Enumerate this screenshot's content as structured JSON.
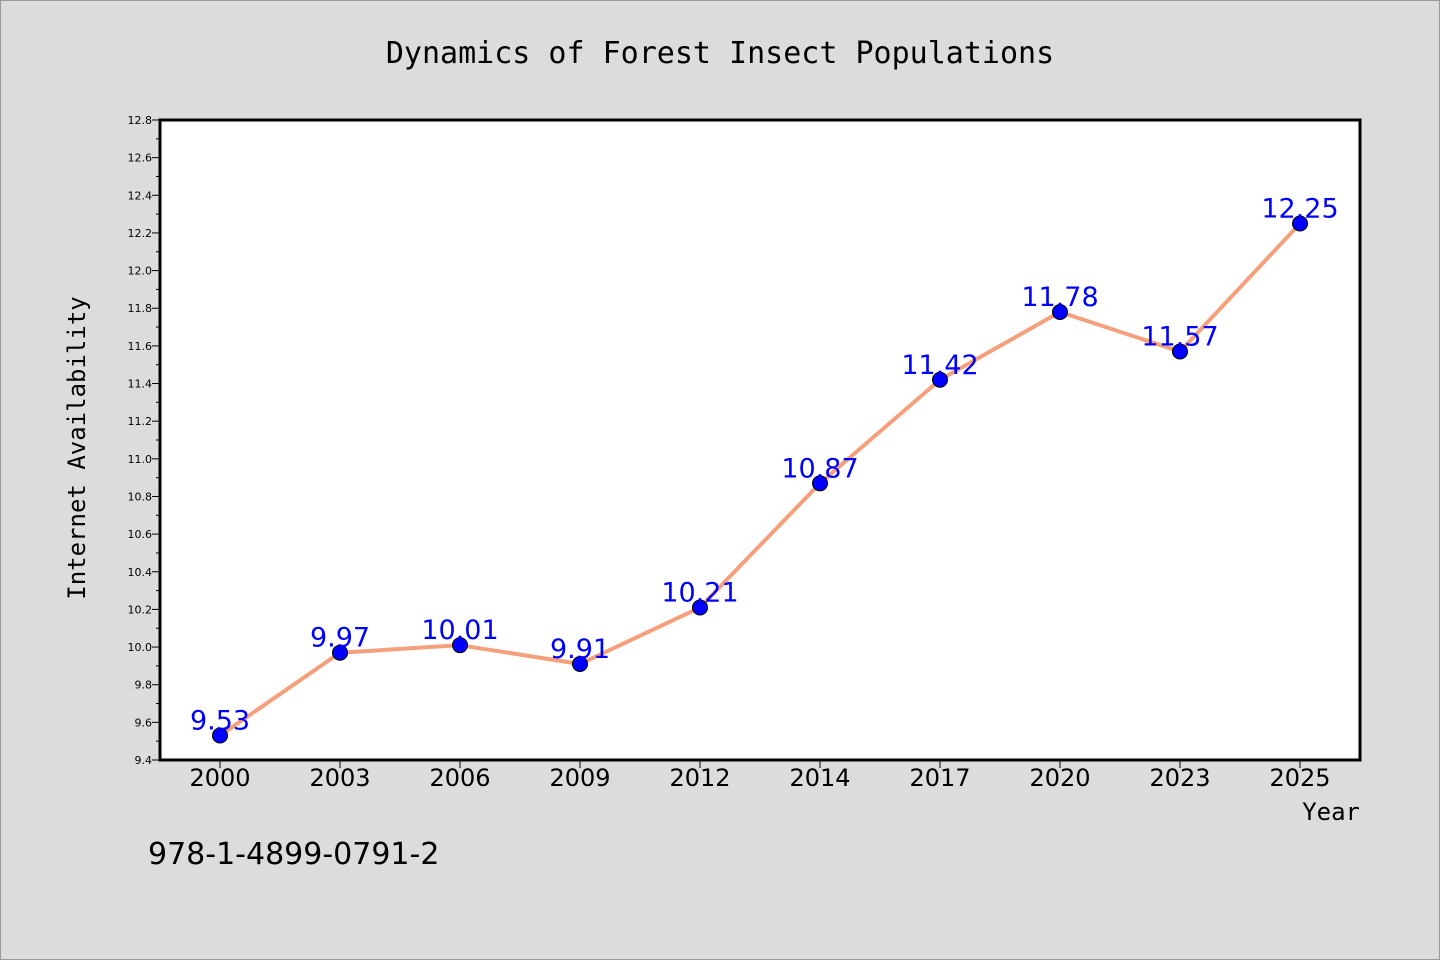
{
  "chart_data": {
    "type": "line",
    "title": "Dynamics of Forest Insect Populations",
    "xlabel": "Year",
    "ylabel": "Internet Availability",
    "categories": [
      "2000",
      "2003",
      "2006",
      "2009",
      "2012",
      "2014",
      "2017",
      "2020",
      "2023",
      "2025"
    ],
    "series": [
      {
        "values": [
          9.53,
          9.97,
          10.01,
          9.91,
          10.21,
          10.87,
          11.42,
          11.78,
          11.57,
          12.25
        ],
        "line_color": "#f4a07c",
        "marker_color": "#0000ff"
      }
    ],
    "data_labels": [
      "9.53",
      "9.97",
      "10.01",
      "9.91",
      "10.21",
      "10.87",
      "11.42",
      "11.78",
      "11.57",
      "12.25"
    ],
    "ylim": [
      9.4,
      12.8
    ],
    "yticks": [
      "9.4",
      "9.6",
      "9.8",
      "10.0",
      "10.2",
      "10.4",
      "10.6",
      "10.8",
      "11.0",
      "11.2",
      "11.4",
      "11.6",
      "11.8",
      "12.0",
      "12.2",
      "12.4",
      "12.6",
      "12.8"
    ],
    "grid": false,
    "legend": "none"
  },
  "footer": {
    "code": "978-1-4899-0791-2"
  },
  "colors": {
    "background": "#dcdcdc",
    "plot_background": "#ffffff",
    "line": "#f4a07c",
    "marker": "#0000ff",
    "label": "#0000ff"
  }
}
